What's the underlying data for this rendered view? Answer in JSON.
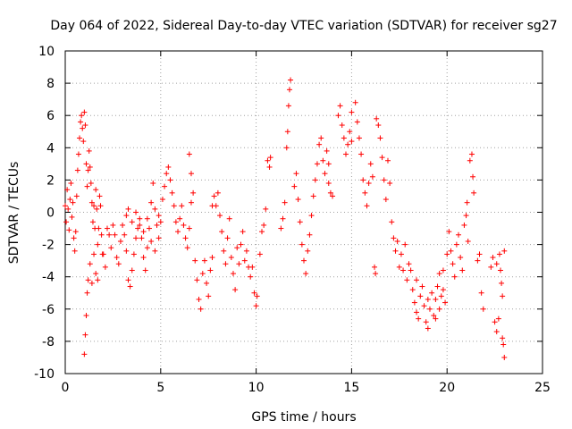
{
  "chart_data": {
    "type": "scatter",
    "title": "Day 064 of 2022, Sidereal Day-to-day VTEC variation (SDTVAR) for receiver sg27",
    "xlabel": "GPS time / hours",
    "ylabel": "SDTVAR / TECUs",
    "xlim": [
      0,
      25
    ],
    "ylim": [
      -10,
      10
    ],
    "x_ticks": [
      0,
      5,
      10,
      15,
      20,
      25
    ],
    "y_ticks": [
      -10,
      -8,
      -6,
      -4,
      -2,
      0,
      2,
      4,
      6,
      8,
      10
    ],
    "x_tick_labels": [
      "0",
      "5",
      "10",
      "15",
      "20",
      "25"
    ],
    "y_tick_labels": [
      "-10",
      "-8",
      "-6",
      "-4",
      "-2",
      "0",
      "2",
      "4",
      "6",
      "8",
      "10"
    ],
    "grid": true,
    "marker": "+",
    "marker_color": "#ff0000",
    "series": [
      {
        "name": "SDTVAR",
        "points": [
          [
            0.0,
            0.4
          ],
          [
            0.05,
            -0.6
          ],
          [
            0.1,
            1.4
          ],
          [
            0.15,
            0.2
          ],
          [
            0.2,
            -1.1
          ],
          [
            0.25,
            0.8
          ],
          [
            0.3,
            1.8
          ],
          [
            0.35,
            -0.3
          ],
          [
            0.4,
            0.6
          ],
          [
            0.45,
            -1.6
          ],
          [
            0.5,
            -2.4
          ],
          [
            0.55,
            -1.2
          ],
          [
            0.6,
            1.0
          ],
          [
            0.65,
            2.6
          ],
          [
            0.7,
            3.6
          ],
          [
            0.75,
            4.6
          ],
          [
            0.8,
            5.6
          ],
          [
            0.85,
            6.0
          ],
          [
            0.9,
            5.2
          ],
          [
            0.95,
            4.4
          ],
          [
            1.0,
            6.2
          ],
          [
            1.05,
            5.4
          ],
          [
            1.1,
            3.0
          ],
          [
            1.15,
            1.6
          ],
          [
            1.2,
            2.6
          ],
          [
            1.25,
            3.8
          ],
          [
            1.3,
            2.8
          ],
          [
            1.35,
            1.8
          ],
          [
            1.4,
            0.6
          ],
          [
            1.45,
            -0.6
          ],
          [
            1.5,
            0.4
          ],
          [
            1.55,
            -1.0
          ],
          [
            1.6,
            1.4
          ],
          [
            1.65,
            0.2
          ],
          [
            1.7,
            -2.0
          ],
          [
            1.75,
            -1.0
          ],
          [
            1.8,
            1.0
          ],
          [
            1.85,
            0.4
          ],
          [
            1.9,
            -1.4
          ],
          [
            1.95,
            -2.6
          ],
          [
            1.0,
            -8.8
          ],
          [
            1.05,
            -7.6
          ],
          [
            1.1,
            -6.4
          ],
          [
            1.15,
            -5.0
          ],
          [
            1.2,
            -4.2
          ],
          [
            1.3,
            -3.2
          ],
          [
            1.4,
            -4.4
          ],
          [
            1.5,
            -2.6
          ],
          [
            1.6,
            -3.8
          ],
          [
            1.7,
            -4.2
          ],
          [
            2.0,
            -2.6
          ],
          [
            2.1,
            -3.4
          ],
          [
            2.2,
            -1.0
          ],
          [
            2.3,
            -1.4
          ],
          [
            2.4,
            -2.2
          ],
          [
            2.5,
            -0.8
          ],
          [
            2.6,
            -1.4
          ],
          [
            2.7,
            -2.8
          ],
          [
            2.8,
            -3.2
          ],
          [
            2.9,
            -1.8
          ],
          [
            3.0,
            -0.8
          ],
          [
            3.1,
            -1.4
          ],
          [
            3.2,
            -2.4
          ],
          [
            3.3,
            -4.2
          ],
          [
            3.4,
            -4.6
          ],
          [
            3.5,
            -3.6
          ],
          [
            3.6,
            -2.6
          ],
          [
            3.7,
            -1.6
          ],
          [
            3.8,
            -1.0
          ],
          [
            3.9,
            -0.4
          ],
          [
            4.0,
            -1.6
          ],
          [
            4.1,
            -2.8
          ],
          [
            4.2,
            -3.6
          ],
          [
            4.3,
            -2.2
          ],
          [
            4.4,
            -1.0
          ],
          [
            4.5,
            0.6
          ],
          [
            4.6,
            1.8
          ],
          [
            4.7,
            0.2
          ],
          [
            4.8,
            -0.8
          ],
          [
            4.9,
            -1.6
          ],
          [
            3.2,
            -0.2
          ],
          [
            3.3,
            0.2
          ],
          [
            3.5,
            -0.6
          ],
          [
            3.7,
            0.0
          ],
          [
            3.9,
            -0.8
          ],
          [
            4.1,
            -1.2
          ],
          [
            4.3,
            -0.4
          ],
          [
            4.5,
            -1.8
          ],
          [
            4.7,
            -2.4
          ],
          [
            4.9,
            -0.2
          ],
          [
            5.0,
            -0.6
          ],
          [
            5.1,
            0.8
          ],
          [
            5.2,
            1.6
          ],
          [
            5.3,
            2.4
          ],
          [
            5.4,
            2.8
          ],
          [
            5.5,
            2.0
          ],
          [
            5.6,
            1.2
          ],
          [
            5.7,
            0.4
          ],
          [
            5.8,
            -0.6
          ],
          [
            5.9,
            -1.2
          ],
          [
            6.0,
            -0.4
          ],
          [
            6.1,
            0.4
          ],
          [
            6.2,
            -0.8
          ],
          [
            6.3,
            -1.6
          ],
          [
            6.4,
            -2.2
          ],
          [
            6.5,
            -1.0
          ],
          [
            6.6,
            0.6
          ],
          [
            6.5,
            3.6
          ],
          [
            6.6,
            2.4
          ],
          [
            6.7,
            1.2
          ],
          [
            6.8,
            -3.0
          ],
          [
            6.9,
            -4.2
          ],
          [
            7.0,
            -5.4
          ],
          [
            7.1,
            -6.0
          ],
          [
            7.2,
            -3.8
          ],
          [
            7.3,
            -3.0
          ],
          [
            7.4,
            -4.4
          ],
          [
            7.5,
            -5.2
          ],
          [
            7.6,
            -3.6
          ],
          [
            7.7,
            -2.8
          ],
          [
            7.7,
            0.4
          ],
          [
            7.8,
            1.0
          ],
          [
            7.9,
            0.4
          ],
          [
            8.0,
            1.2
          ],
          [
            8.1,
            -0.2
          ],
          [
            8.2,
            -1.2
          ],
          [
            8.3,
            -2.4
          ],
          [
            8.4,
            -3.2
          ],
          [
            8.5,
            -1.6
          ],
          [
            8.6,
            -0.4
          ],
          [
            8.7,
            -2.8
          ],
          [
            8.8,
            -3.8
          ],
          [
            8.9,
            -4.8
          ],
          [
            9.0,
            -2.2
          ],
          [
            9.1,
            -3.2
          ],
          [
            9.2,
            -2.0
          ],
          [
            9.3,
            -1.2
          ],
          [
            9.4,
            -3.0
          ],
          [
            9.5,
            -2.4
          ],
          [
            9.6,
            -3.4
          ],
          [
            9.7,
            -4.0
          ],
          [
            9.8,
            -3.4
          ],
          [
            9.9,
            -5.0
          ],
          [
            10.0,
            -5.8
          ],
          [
            10.05,
            -5.2
          ],
          [
            10.2,
            -2.6
          ],
          [
            10.3,
            -1.2
          ],
          [
            10.4,
            -0.8
          ],
          [
            10.5,
            0.2
          ],
          [
            10.6,
            3.2
          ],
          [
            10.7,
            2.8
          ],
          [
            10.75,
            3.4
          ],
          [
            11.3,
            -1.0
          ],
          [
            11.4,
            -0.4
          ],
          [
            11.5,
            0.6
          ],
          [
            11.6,
            4.0
          ],
          [
            11.65,
            5.0
          ],
          [
            11.7,
            6.6
          ],
          [
            11.75,
            7.6
          ],
          [
            11.8,
            8.2
          ],
          [
            12.0,
            1.6
          ],
          [
            12.1,
            2.4
          ],
          [
            12.2,
            0.8
          ],
          [
            12.3,
            -0.6
          ],
          [
            12.4,
            -2.0
          ],
          [
            12.5,
            -3.0
          ],
          [
            12.6,
            -3.8
          ],
          [
            12.7,
            -2.4
          ],
          [
            12.8,
            -1.4
          ],
          [
            12.9,
            -0.2
          ],
          [
            13.0,
            1.0
          ],
          [
            13.1,
            2.0
          ],
          [
            13.2,
            3.0
          ],
          [
            13.3,
            4.2
          ],
          [
            13.4,
            4.6
          ],
          [
            13.5,
            3.2
          ],
          [
            13.6,
            2.4
          ],
          [
            13.7,
            3.8
          ],
          [
            13.8,
            3.0
          ],
          [
            13.9,
            1.2
          ],
          [
            13.8,
            1.8
          ],
          [
            14.0,
            1.0
          ],
          [
            14.3,
            6.0
          ],
          [
            14.4,
            6.6
          ],
          [
            14.5,
            5.4
          ],
          [
            14.6,
            4.6
          ],
          [
            14.7,
            3.6
          ],
          [
            14.8,
            4.2
          ],
          [
            14.9,
            5.0
          ],
          [
            15.0,
            4.4
          ],
          [
            15.0,
            6.2
          ],
          [
            15.2,
            6.8
          ],
          [
            15.3,
            5.6
          ],
          [
            15.4,
            4.6
          ],
          [
            15.5,
            3.6
          ],
          [
            15.6,
            2.0
          ],
          [
            15.7,
            1.2
          ],
          [
            15.8,
            0.4
          ],
          [
            15.9,
            1.8
          ],
          [
            16.0,
            3.0
          ],
          [
            16.1,
            2.2
          ],
          [
            16.2,
            -3.4
          ],
          [
            16.25,
            -3.8
          ],
          [
            16.3,
            5.8
          ],
          [
            16.4,
            5.4
          ],
          [
            16.5,
            4.6
          ],
          [
            16.6,
            3.4
          ],
          [
            16.7,
            2.0
          ],
          [
            16.8,
            0.8
          ],
          [
            16.9,
            3.2
          ],
          [
            17.0,
            1.8
          ],
          [
            17.1,
            -0.6
          ],
          [
            17.2,
            -1.6
          ],
          [
            17.3,
            -2.4
          ],
          [
            17.4,
            -1.8
          ],
          [
            17.5,
            -3.4
          ],
          [
            17.6,
            -2.6
          ],
          [
            17.7,
            -3.6
          ],
          [
            17.8,
            -2.0
          ],
          [
            17.9,
            -4.2
          ],
          [
            18.0,
            -3.2
          ],
          [
            18.1,
            -3.6
          ],
          [
            18.2,
            -4.8
          ],
          [
            18.3,
            -5.6
          ],
          [
            18.4,
            -6.2
          ],
          [
            18.5,
            -6.6
          ],
          [
            18.6,
            -5.2
          ],
          [
            18.7,
            -4.6
          ],
          [
            18.8,
            -5.8
          ],
          [
            18.9,
            -6.8
          ],
          [
            19.0,
            -7.2
          ],
          [
            19.1,
            -6.0
          ],
          [
            19.2,
            -5.0
          ],
          [
            19.3,
            -6.4
          ],
          [
            19.4,
            -5.4
          ],
          [
            19.5,
            -4.6
          ],
          [
            19.6,
            -3.8
          ],
          [
            19.7,
            -5.2
          ],
          [
            19.8,
            -4.8
          ],
          [
            19.9,
            -5.6
          ],
          [
            19.4,
            -6.6
          ],
          [
            19.6,
            -6.0
          ],
          [
            18.4,
            -4.2
          ],
          [
            19.0,
            -5.4
          ],
          [
            19.8,
            -3.6
          ],
          [
            20.0,
            -2.6
          ],
          [
            20.1,
            -1.2
          ],
          [
            20.2,
            -2.4
          ],
          [
            20.3,
            -3.2
          ],
          [
            20.4,
            -4.0
          ],
          [
            20.5,
            -2.0
          ],
          [
            20.6,
            -1.4
          ],
          [
            20.7,
            -2.8
          ],
          [
            20.8,
            -3.6
          ],
          [
            20.9,
            -0.8
          ],
          [
            21.0,
            -0.2
          ],
          [
            21.05,
            0.6
          ],
          [
            21.1,
            -1.8
          ],
          [
            21.2,
            3.2
          ],
          [
            21.3,
            3.6
          ],
          [
            21.35,
            2.2
          ],
          [
            21.4,
            1.2
          ],
          [
            21.6,
            -3.0
          ],
          [
            21.7,
            -2.6
          ],
          [
            21.8,
            -5.0
          ],
          [
            21.9,
            -6.0
          ],
          [
            22.3,
            -3.4
          ],
          [
            22.4,
            -2.8
          ],
          [
            22.5,
            -6.8
          ],
          [
            22.6,
            -7.4
          ],
          [
            22.7,
            -6.6
          ],
          [
            22.8,
            -3.6
          ],
          [
            22.85,
            -4.4
          ],
          [
            22.9,
            -5.2
          ],
          [
            22.95,
            -8.2
          ],
          [
            23.0,
            -9.0
          ],
          [
            22.6,
            -3.2
          ],
          [
            22.75,
            -2.6
          ],
          [
            23.0,
            -2.4
          ],
          [
            22.9,
            -7.8
          ]
        ]
      }
    ]
  }
}
